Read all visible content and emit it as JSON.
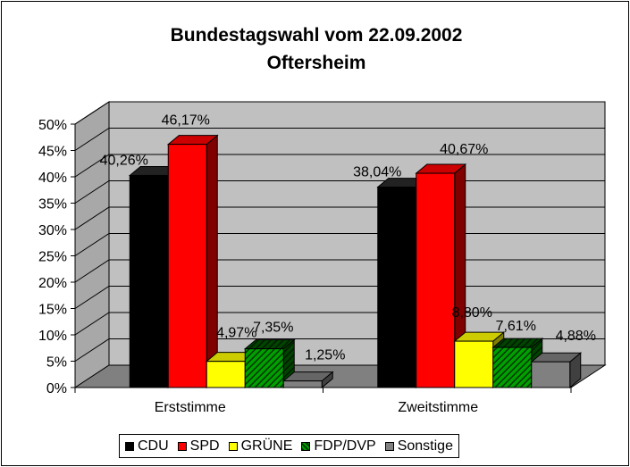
{
  "chart_data": {
    "type": "bar",
    "title": "Bundestagswahl vom 22.09.2002",
    "subtitle": "Oftersheim",
    "categories": [
      "Erststimme",
      "Zweitstimme"
    ],
    "y_ticks": [
      "0%",
      "5%",
      "10%",
      "15%",
      "20%",
      "25%",
      "30%",
      "35%",
      "40%",
      "45%",
      "50%"
    ],
    "ylim": [
      0,
      50
    ],
    "xlabel": "",
    "ylabel": "",
    "legend_position": "bottom",
    "series": [
      {
        "name": "CDU",
        "color": "#000000",
        "values": [
          40.26,
          38.04
        ],
        "labels": [
          "40,26%",
          "38,04%"
        ]
      },
      {
        "name": "SPD",
        "color": "#ff0000",
        "values": [
          46.17,
          40.67
        ],
        "labels": [
          "46,17%",
          "40,67%"
        ]
      },
      {
        "name": "GRÜNE",
        "color": "#ffff00",
        "values": [
          4.97,
          8.8
        ],
        "labels": [
          "4,97%",
          "8,80%"
        ]
      },
      {
        "name": "FDP/DVP",
        "color": "#006600",
        "pattern": "hatched",
        "values": [
          7.35,
          7.61
        ],
        "labels": [
          "7,35%",
          "7,61%"
        ]
      },
      {
        "name": "Sonstige",
        "color": "#808080",
        "values": [
          1.25,
          4.88
        ],
        "labels": [
          "1,25%",
          "4,88%"
        ]
      }
    ]
  }
}
